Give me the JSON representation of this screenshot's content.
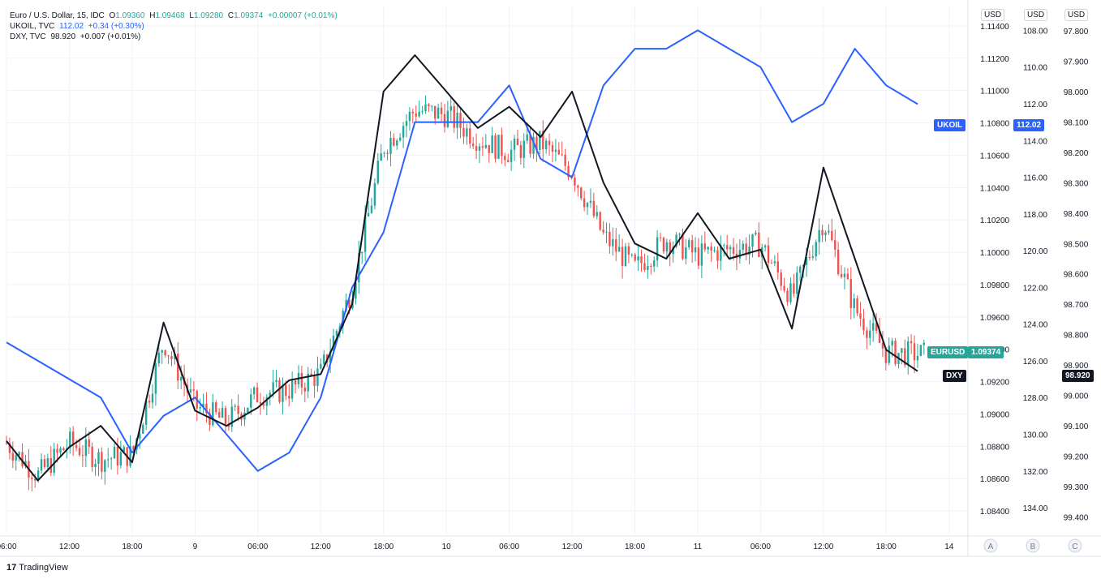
{
  "legend": {
    "main": {
      "symbol": "Euro / U.S. Dollar, 15, IDC",
      "o_label": "O",
      "o": "1.09360",
      "h_label": "H",
      "h": "1.09468",
      "l_label": "L",
      "l": "1.09280",
      "c_label": "C",
      "c": "1.09374",
      "change": "+0.00007 (+0.01%)"
    },
    "ukoil": {
      "symbol": "UKOIL, TVC",
      "value": "112.02",
      "change": "+0.34 (+0.30%)"
    },
    "dxy": {
      "symbol": "DXY, TVC",
      "value": "98.920",
      "change": "+0.007 (+0.01%)"
    }
  },
  "scale_headers": [
    "USD",
    "USD",
    "USD"
  ],
  "scale_letters": [
    "A",
    "B",
    "C"
  ],
  "badges": {
    "ukoil_name": "UKOIL",
    "ukoil_value": "112.02",
    "eurusd_name": "EURUSD",
    "eurusd_value": "1.09374",
    "dxy_name": "DXY",
    "dxy_value": "98.920"
  },
  "footer": {
    "brand": "TradingView",
    "logo_glyph": "17"
  },
  "colors": {
    "up": "#26a69a",
    "down": "#ef5350",
    "ukoil": "#2962ff",
    "dxy": "#131722",
    "grid": "#f0f3fa",
    "eurusd_badge": "#26a69a",
    "ukoil_badge": "#2962ff",
    "dxy_badge": "#131722"
  },
  "chart_data": {
    "type": "line",
    "title": "Euro / U.S. Dollar, 15, IDC",
    "x_ticks": [
      "06:00",
      "12:00",
      "18:00",
      "9",
      "06:00",
      "12:00",
      "18:00",
      "10",
      "06:00",
      "12:00",
      "18:00",
      "11",
      "06:00",
      "12:00",
      "18:00",
      "14"
    ],
    "x_range": [
      0,
      15.3
    ],
    "scales": {
      "A": {
        "label": "EURUSD (USD)",
        "range": [
          1.0825,
          1.1152
        ],
        "ticks": [
          "1.11400",
          "1.11200",
          "1.11000",
          "1.10800",
          "1.10600",
          "1.10400",
          "1.10200",
          "1.10000",
          "1.09800",
          "1.09600",
          "1.09400",
          "1.09200",
          "1.09000",
          "1.08800",
          "1.08600",
          "1.08400"
        ]
      },
      "B": {
        "label": "UKOIL (USD)",
        "range": [
          135.5,
          106.7
        ],
        "inverted": true,
        "ticks": [
          "108.00",
          "110.00",
          "112.00",
          "114.00",
          "116.00",
          "118.00",
          "120.00",
          "122.00",
          "124.00",
          "126.00",
          "128.00",
          "130.00",
          "132.00",
          "134.00"
        ]
      },
      "C": {
        "label": "DXY (USD)",
        "range": [
          99.46,
          97.72
        ],
        "inverted": true,
        "ticks": [
          "97.800",
          "97.900",
          "98.000",
          "98.100",
          "98.200",
          "98.300",
          "98.400",
          "98.500",
          "98.600",
          "98.700",
          "98.800",
          "98.900",
          "99.000",
          "99.100",
          "99.200",
          "99.300",
          "99.400"
        ]
      }
    },
    "series": [
      {
        "name": "EURUSD",
        "scale": "A",
        "style": "candles",
        "x": [
          0,
          0.5,
          1,
          1.5,
          2,
          2.5,
          3,
          3.5,
          4,
          4.5,
          5,
          5.5,
          6,
          6.5,
          7,
          7.5,
          8,
          8.5,
          9,
          9.5,
          10,
          10.5,
          11,
          11.5,
          12,
          12.5,
          13,
          13.5,
          14,
          14.5,
          15
        ],
        "values": [
          1.0882,
          1.0862,
          1.0882,
          1.0872,
          1.0875,
          1.0945,
          1.0905,
          1.0895,
          1.0912,
          1.0915,
          1.0925,
          1.0978,
          1.1065,
          1.1088,
          1.1085,
          1.107,
          1.1062,
          1.1068,
          1.105,
          1.101,
          1.099,
          1.1008,
          1.0998,
          1.1002,
          1.1005,
          1.0972,
          1.102,
          1.0965,
          1.0938,
          1.0937,
          1.0937
        ]
      },
      {
        "name": "UKOIL",
        "scale": "B",
        "style": "line",
        "x": [
          0,
          0.5,
          1,
          1.5,
          2,
          2.5,
          3,
          3.5,
          4,
          4.5,
          5,
          5.5,
          6,
          6.5,
          7,
          7.5,
          8,
          8.5,
          9,
          9.5,
          10,
          10.5,
          11,
          11.5,
          12,
          12.5,
          13,
          13.5,
          14,
          14.5
        ],
        "values": [
          125,
          126,
          127,
          128,
          131,
          129,
          128,
          130,
          132,
          131,
          128,
          122,
          119,
          113,
          113,
          113,
          111,
          115,
          116,
          111,
          109,
          109,
          108,
          109,
          110,
          113,
          112,
          109,
          111,
          112.02
        ]
      },
      {
        "name": "DXY",
        "scale": "C",
        "style": "line",
        "x": [
          0,
          0.5,
          1,
          1.5,
          2,
          2.5,
          3,
          3.5,
          4,
          4.5,
          5,
          5.5,
          6,
          6.5,
          7,
          7.5,
          8,
          8.5,
          9,
          9.5,
          10,
          10.5,
          11,
          11.5,
          12,
          12.5,
          13,
          13.5,
          14,
          14.5
        ],
        "values": [
          99.15,
          99.28,
          99.17,
          99.1,
          99.22,
          98.76,
          99.05,
          99.1,
          99.04,
          98.95,
          98.93,
          98.7,
          98.0,
          97.88,
          98.0,
          98.12,
          98.05,
          98.15,
          98.0,
          98.3,
          98.5,
          98.55,
          98.4,
          98.55,
          98.52,
          98.78,
          98.25,
          98.55,
          98.85,
          98.92
        ]
      }
    ]
  }
}
